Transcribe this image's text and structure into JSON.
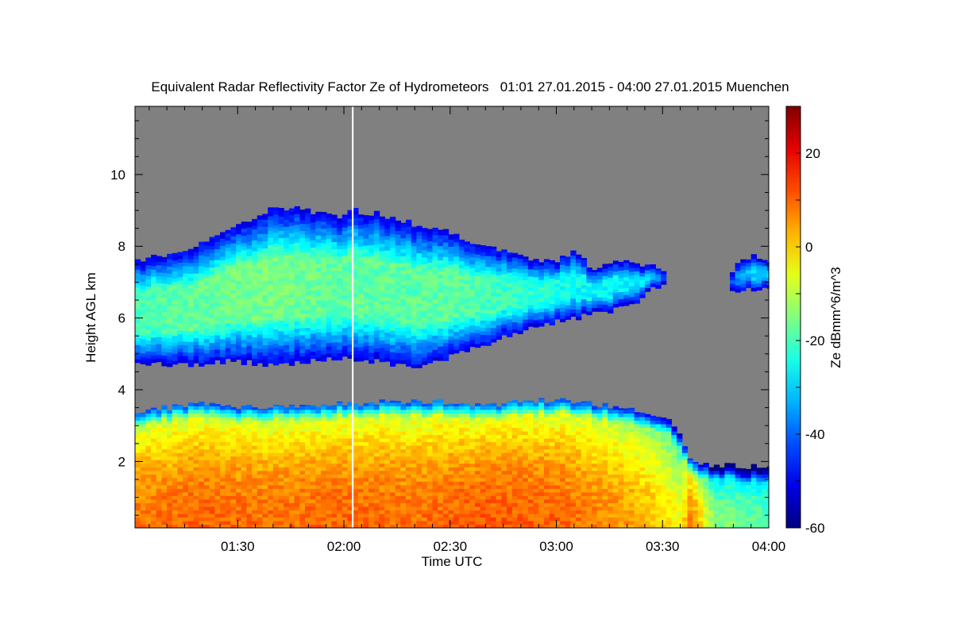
{
  "chart_data": {
    "type": "heatmap",
    "title": "Equivalent Radar Reflectivity Factor Ze of Hydrometeors   01:01 27.01.2015 - 04:00 27.01.2015 Muenchen",
    "xlabel": "Time UTC",
    "ylabel": "Height AGL km",
    "colorbar_label": "Ze dBmm^6/m^3",
    "x_range": [
      "01:01",
      "04:00"
    ],
    "x_range_minutes": [
      61,
      240
    ],
    "x_ticks": [
      {
        "label": "01:30",
        "minutes": 90
      },
      {
        "label": "02:00",
        "minutes": 120
      },
      {
        "label": "02:30",
        "minutes": 150
      },
      {
        "label": "03:00",
        "minutes": 180
      },
      {
        "label": "03:30",
        "minutes": 210
      },
      {
        "label": "04:00",
        "minutes": 240
      }
    ],
    "ylim": [
      0.15,
      11.9
    ],
    "y_ticks": [
      2,
      4,
      6,
      8,
      10
    ],
    "clim": [
      -60,
      30
    ],
    "colorbar_ticks": [
      20,
      0,
      -20,
      -40,
      -60
    ],
    "colormap": "jet",
    "no_signal_color": "#808080",
    "marker_line": {
      "time_minutes": 122.5,
      "color": "#ffffff"
    },
    "layers": [
      {
        "name_hint": "upper",
        "time": [
          61,
          75,
          90,
          100,
          110,
          120,
          122.5,
          130,
          140,
          150,
          160,
          170,
          180,
          185,
          190,
          200,
          210,
          212
        ],
        "top_km": [
          7.6,
          7.8,
          8.6,
          9.1,
          9.0,
          8.8,
          9.0,
          8.9,
          8.6,
          8.4,
          8.0,
          7.7,
          7.6,
          7.9,
          7.4,
          7.6,
          7.4,
          6.8
        ],
        "base_km": [
          4.8,
          4.7,
          4.8,
          4.7,
          4.8,
          4.9,
          4.8,
          4.8,
          4.6,
          4.9,
          5.3,
          5.6,
          5.9,
          6.0,
          6.1,
          6.3,
          7.0,
          7.1
        ],
        "core_dbz": [
          -20,
          -18,
          -16,
          -16,
          -17,
          -18,
          -18,
          -18,
          -18,
          -18,
          -20,
          -22,
          -24,
          -25,
          -26,
          -28,
          -30,
          -33
        ]
      },
      {
        "name_hint": "lower",
        "time": [
          61,
          80,
          100,
          120,
          140,
          160,
          180,
          200,
          210,
          215,
          218,
          225,
          230,
          240
        ],
        "top_km": [
          3.4,
          3.6,
          3.5,
          3.6,
          3.7,
          3.6,
          3.7,
          3.5,
          3.3,
          2.8,
          2.0,
          1.9,
          1.9,
          1.8
        ],
        "base_km": [
          0.15,
          0.15,
          0.15,
          0.15,
          0.15,
          0.15,
          0.15,
          0.15,
          0.15,
          0.15,
          0.15,
          0.15,
          0.15,
          0.15
        ],
        "core_dbz": [
          8,
          10,
          9,
          10,
          9,
          11,
          10,
          5,
          0,
          -5,
          8,
          -15,
          -15,
          -18
        ]
      },
      {
        "name_hint": "isolated",
        "time": [
          229,
          232,
          236,
          240
        ],
        "top_km": [
          7.1,
          7.6,
          7.7,
          7.5
        ],
        "base_km": [
          6.8,
          6.8,
          6.8,
          6.9
        ],
        "core_dbz": [
          -40,
          -35,
          -30,
          -30
        ]
      }
    ]
  }
}
